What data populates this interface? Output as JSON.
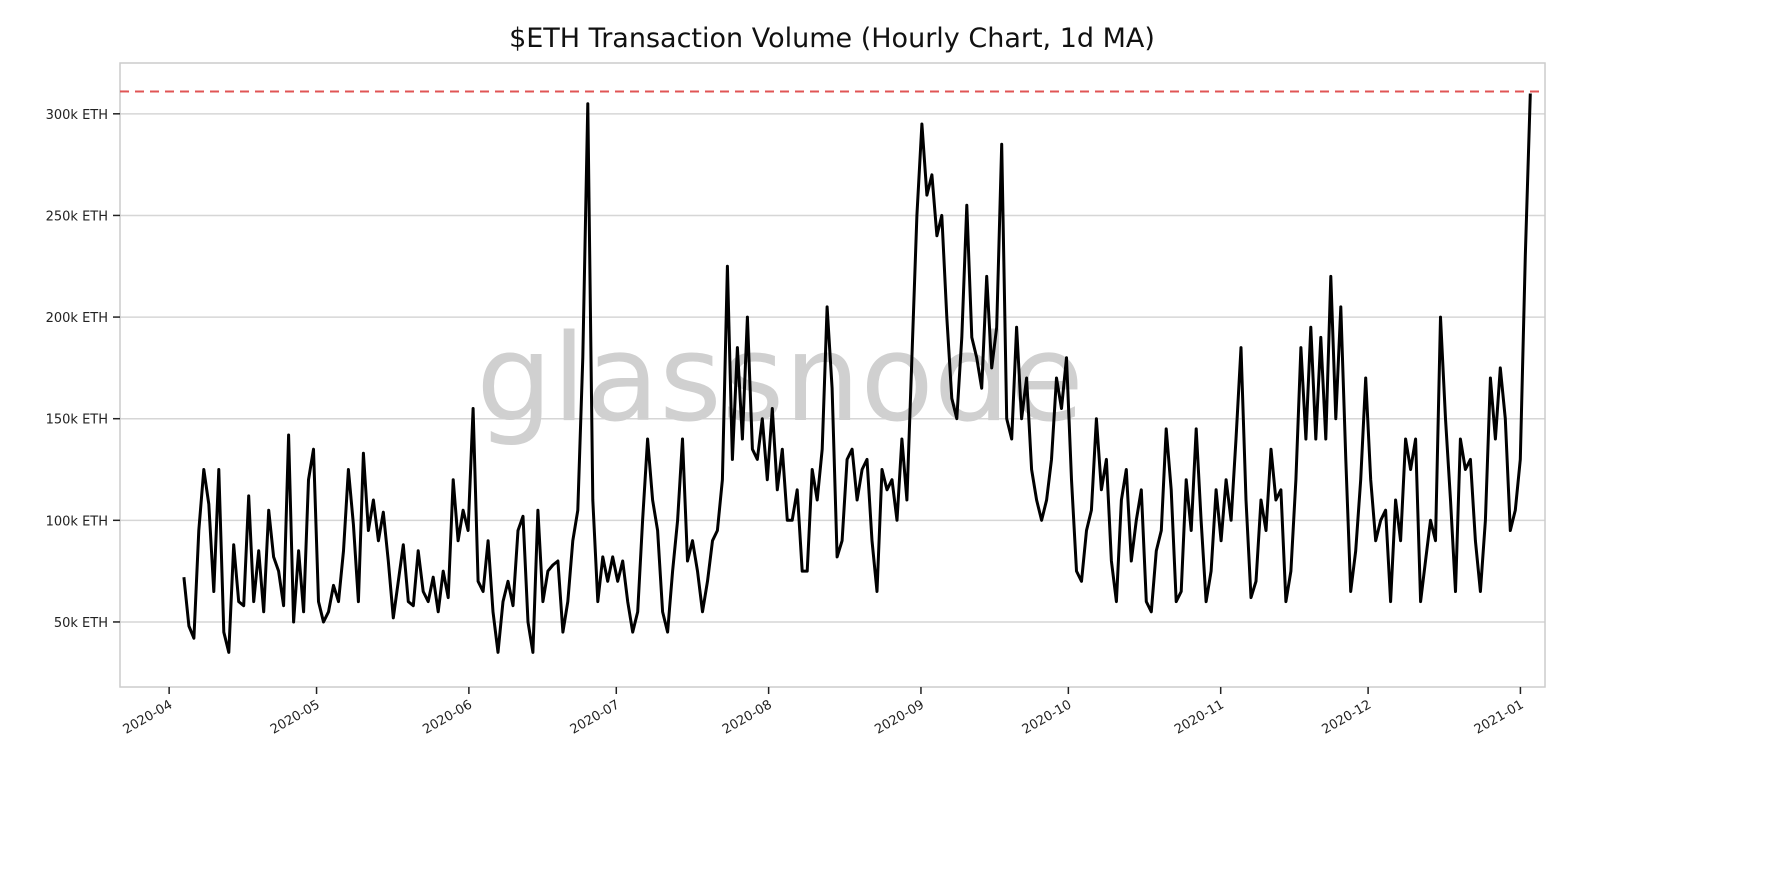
{
  "chart_data": {
    "type": "line",
    "title": "$ETH Transaction Volume (Hourly Chart, 1d MA)",
    "watermark": "glassnode",
    "xlabel": "",
    "ylabel": "",
    "xlim": [
      "2020-03-22",
      "2021-01-06"
    ],
    "ylim": [
      18000,
      325000
    ],
    "grid": "horizontal",
    "y_ticks": [
      {
        "value": 50000,
        "label": "50k ETH"
      },
      {
        "value": 100000,
        "label": "100k ETH"
      },
      {
        "value": 150000,
        "label": "150k ETH"
      },
      {
        "value": 200000,
        "label": "200k ETH"
      },
      {
        "value": 250000,
        "label": "250k ETH"
      },
      {
        "value": 300000,
        "label": "300k ETH"
      }
    ],
    "x_ticks": [
      {
        "value": "2020-04-01",
        "label": "2020-04"
      },
      {
        "value": "2020-05-01",
        "label": "2020-05"
      },
      {
        "value": "2020-06-01",
        "label": "2020-06"
      },
      {
        "value": "2020-07-01",
        "label": "2020-07"
      },
      {
        "value": "2020-08-01",
        "label": "2020-08"
      },
      {
        "value": "2020-09-01",
        "label": "2020-09"
      },
      {
        "value": "2020-10-01",
        "label": "2020-10"
      },
      {
        "value": "2020-11-01",
        "label": "2020-11"
      },
      {
        "value": "2020-12-01",
        "label": "2020-12"
      },
      {
        "value": "2021-01-01",
        "label": "2021-01"
      }
    ],
    "reference_line": {
      "value": 311000,
      "style": "dashed",
      "color": "#e05555"
    },
    "series": [
      {
        "name": "ETH transaction volume (1d MA)",
        "color": "#000000",
        "x_start": "2020-04-04",
        "x_end": "2021-01-03",
        "unit": "thousand ETH",
        "values": [
          72,
          48,
          42,
          95,
          125,
          108,
          65,
          125,
          45,
          35,
          88,
          60,
          58,
          112,
          60,
          85,
          55,
          105,
          82,
          75,
          58,
          142,
          50,
          85,
          55,
          120,
          135,
          60,
          50,
          55,
          68,
          60,
          85,
          125,
          98,
          60,
          133,
          95,
          110,
          90,
          104,
          80,
          52,
          70,
          88,
          60,
          58,
          85,
          65,
          60,
          72,
          55,
          75,
          62,
          120,
          90,
          105,
          95,
          155,
          70,
          65,
          90,
          55,
          35,
          60,
          70,
          58,
          95,
          102,
          50,
          35,
          105,
          60,
          75,
          78,
          80,
          45,
          60,
          90,
          105,
          180,
          305,
          110,
          60,
          82,
          70,
          82,
          70,
          80,
          60,
          45,
          55,
          100,
          140,
          110,
          95,
          55,
          45,
          75,
          100,
          140,
          80,
          90,
          75,
          55,
          70,
          90,
          95,
          120,
          225,
          130,
          185,
          140,
          200,
          135,
          130,
          150,
          120,
          155,
          115,
          135,
          100,
          100,
          115,
          75,
          75,
          125,
          110,
          135,
          205,
          165,
          82,
          90,
          130,
          135,
          110,
          125,
          130,
          90,
          65,
          125,
          115,
          120,
          100,
          140,
          110,
          180,
          250,
          295,
          260,
          270,
          240,
          250,
          200,
          160,
          150,
          190,
          255,
          190,
          180,
          165,
          220,
          175,
          195,
          285,
          150,
          140,
          195,
          150,
          170,
          125,
          110,
          100,
          110,
          130,
          170,
          155,
          180,
          120,
          75,
          70,
          95,
          105,
          150,
          115,
          130,
          80,
          60,
          110,
          125,
          80,
          100,
          115,
          60,
          55,
          85,
          95,
          145,
          115,
          60,
          65,
          120,
          95,
          145,
          100,
          60,
          75,
          115,
          90,
          120,
          100,
          140,
          185,
          110,
          62,
          70,
          110,
          95,
          135,
          110,
          115,
          60,
          75,
          120,
          185,
          140,
          195,
          140,
          190,
          140,
          220,
          150,
          205,
          130,
          65,
          85,
          120,
          170,
          120,
          90,
          100,
          105,
          60,
          110,
          90,
          140,
          125,
          140,
          60,
          80,
          100,
          90,
          200,
          150,
          110,
          65,
          140,
          125,
          130,
          90,
          65,
          100,
          170,
          140,
          175,
          150,
          95,
          105,
          130,
          230,
          310
        ]
      }
    ]
  }
}
